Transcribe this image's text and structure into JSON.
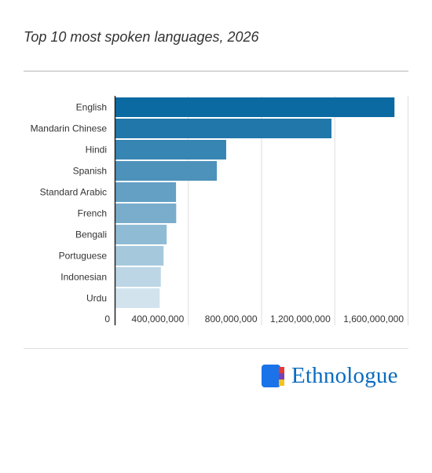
{
  "title": "Top 10 most spoken languages, 2026",
  "logo": {
    "text": "Ethnologue",
    "colors": [
      "#1a73e8",
      "#f7c21b",
      "#e53935",
      "#7b3fb5"
    ]
  },
  "colors": {
    "bar_dark": "#0b6aa2",
    "bar_light": "#d2e3ee",
    "gridline": "#dddddd",
    "axis": "#222222"
  },
  "chart_data": {
    "type": "bar",
    "orientation": "horizontal",
    "categories": [
      "English",
      "Mandarin Chinese",
      "Hindi",
      "Spanish",
      "Standard Arabic",
      "French",
      "Bengali",
      "Portuguese",
      "Indonesian",
      "Urdu"
    ],
    "values": [
      1528000000,
      1184000000,
      609000000,
      558000000,
      335000000,
      336000000,
      284000000,
      267000000,
      252000000,
      246000000
    ],
    "x_ticks": [
      "0",
      "400,000,000",
      "800,000,000",
      "1,200,000,000",
      "1,600,000,000"
    ],
    "x_tick_values": [
      0,
      400000000,
      800000000,
      1200000000,
      1600000000
    ],
    "xlim": [
      0,
      1600000000
    ],
    "grid": true,
    "legend": "none",
    "title": "Top 10 most spoken languages, 2026"
  }
}
